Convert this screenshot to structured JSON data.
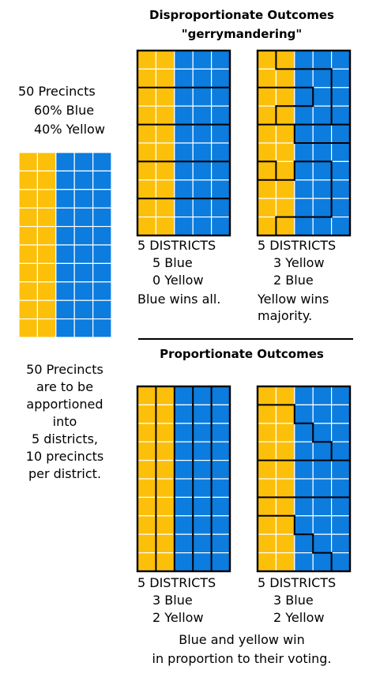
{
  "colors": {
    "blue": "#0c7cde",
    "yellow": "#fcc00a",
    "cell_line": "#ffffff",
    "district_line": "#000000"
  },
  "title_top_line1": "Disproportionate Outcomes",
  "title_top_line2": "\"gerrymandering\"",
  "title_bottom": "Proportionate Outcomes",
  "left_summary": [
    "50 Precincts",
    "60% Blue",
    "40% Yellow"
  ],
  "left_explanation": [
    "50 Precincts",
    "are to be",
    "apportioned",
    "into",
    "5 districts,",
    "10 precincts",
    "per district."
  ],
  "grids": {
    "rows": 10,
    "cols": 5,
    "yellow_cols": 2,
    "overview": {
      "districts": false
    },
    "dispA": {
      "label": [
        "5 DISTRICTS",
        "5 Blue",
        "0 Yellow"
      ],
      "outcome": [
        "Blue wins all."
      ]
    },
    "dispB": {
      "label": [
        "5 DISTRICTS",
        "3 Yellow",
        "2 Blue"
      ],
      "outcome": [
        "Yellow wins",
        "majority."
      ]
    },
    "propA": {
      "label": [
        "5 DISTRICTS",
        "3 Blue",
        "2 Yellow"
      ]
    },
    "propB": {
      "label": [
        "5 DISTRICTS",
        "3 Blue",
        "2 Yellow"
      ]
    }
  },
  "footer": [
    "Blue and yellow win",
    "in proportion to their voting."
  ]
}
